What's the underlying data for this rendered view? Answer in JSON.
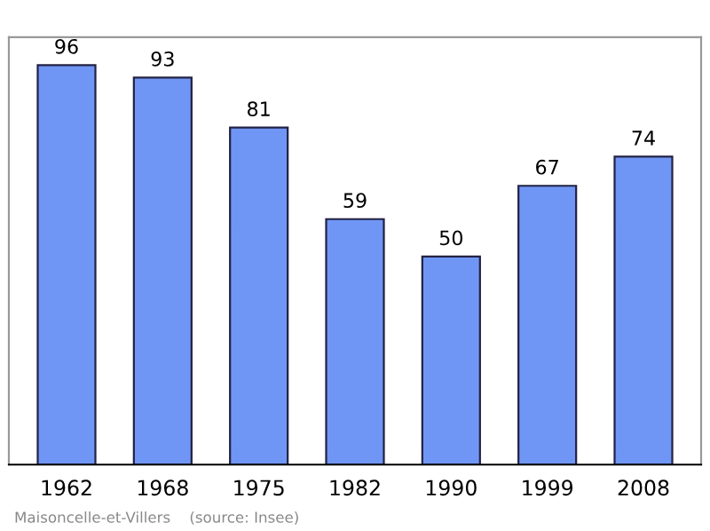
{
  "chart_data": {
    "type": "bar",
    "categories": [
      "1962",
      "1968",
      "1975",
      "1982",
      "1990",
      "1999",
      "2008"
    ],
    "values": [
      96,
      93,
      81,
      59,
      50,
      67,
      74
    ],
    "color": "#7096f5",
    "data_labels": true,
    "grid": false,
    "annotations": [
      "Maisoncelle-et-Villers    (source: Insee)"
    ]
  }
}
